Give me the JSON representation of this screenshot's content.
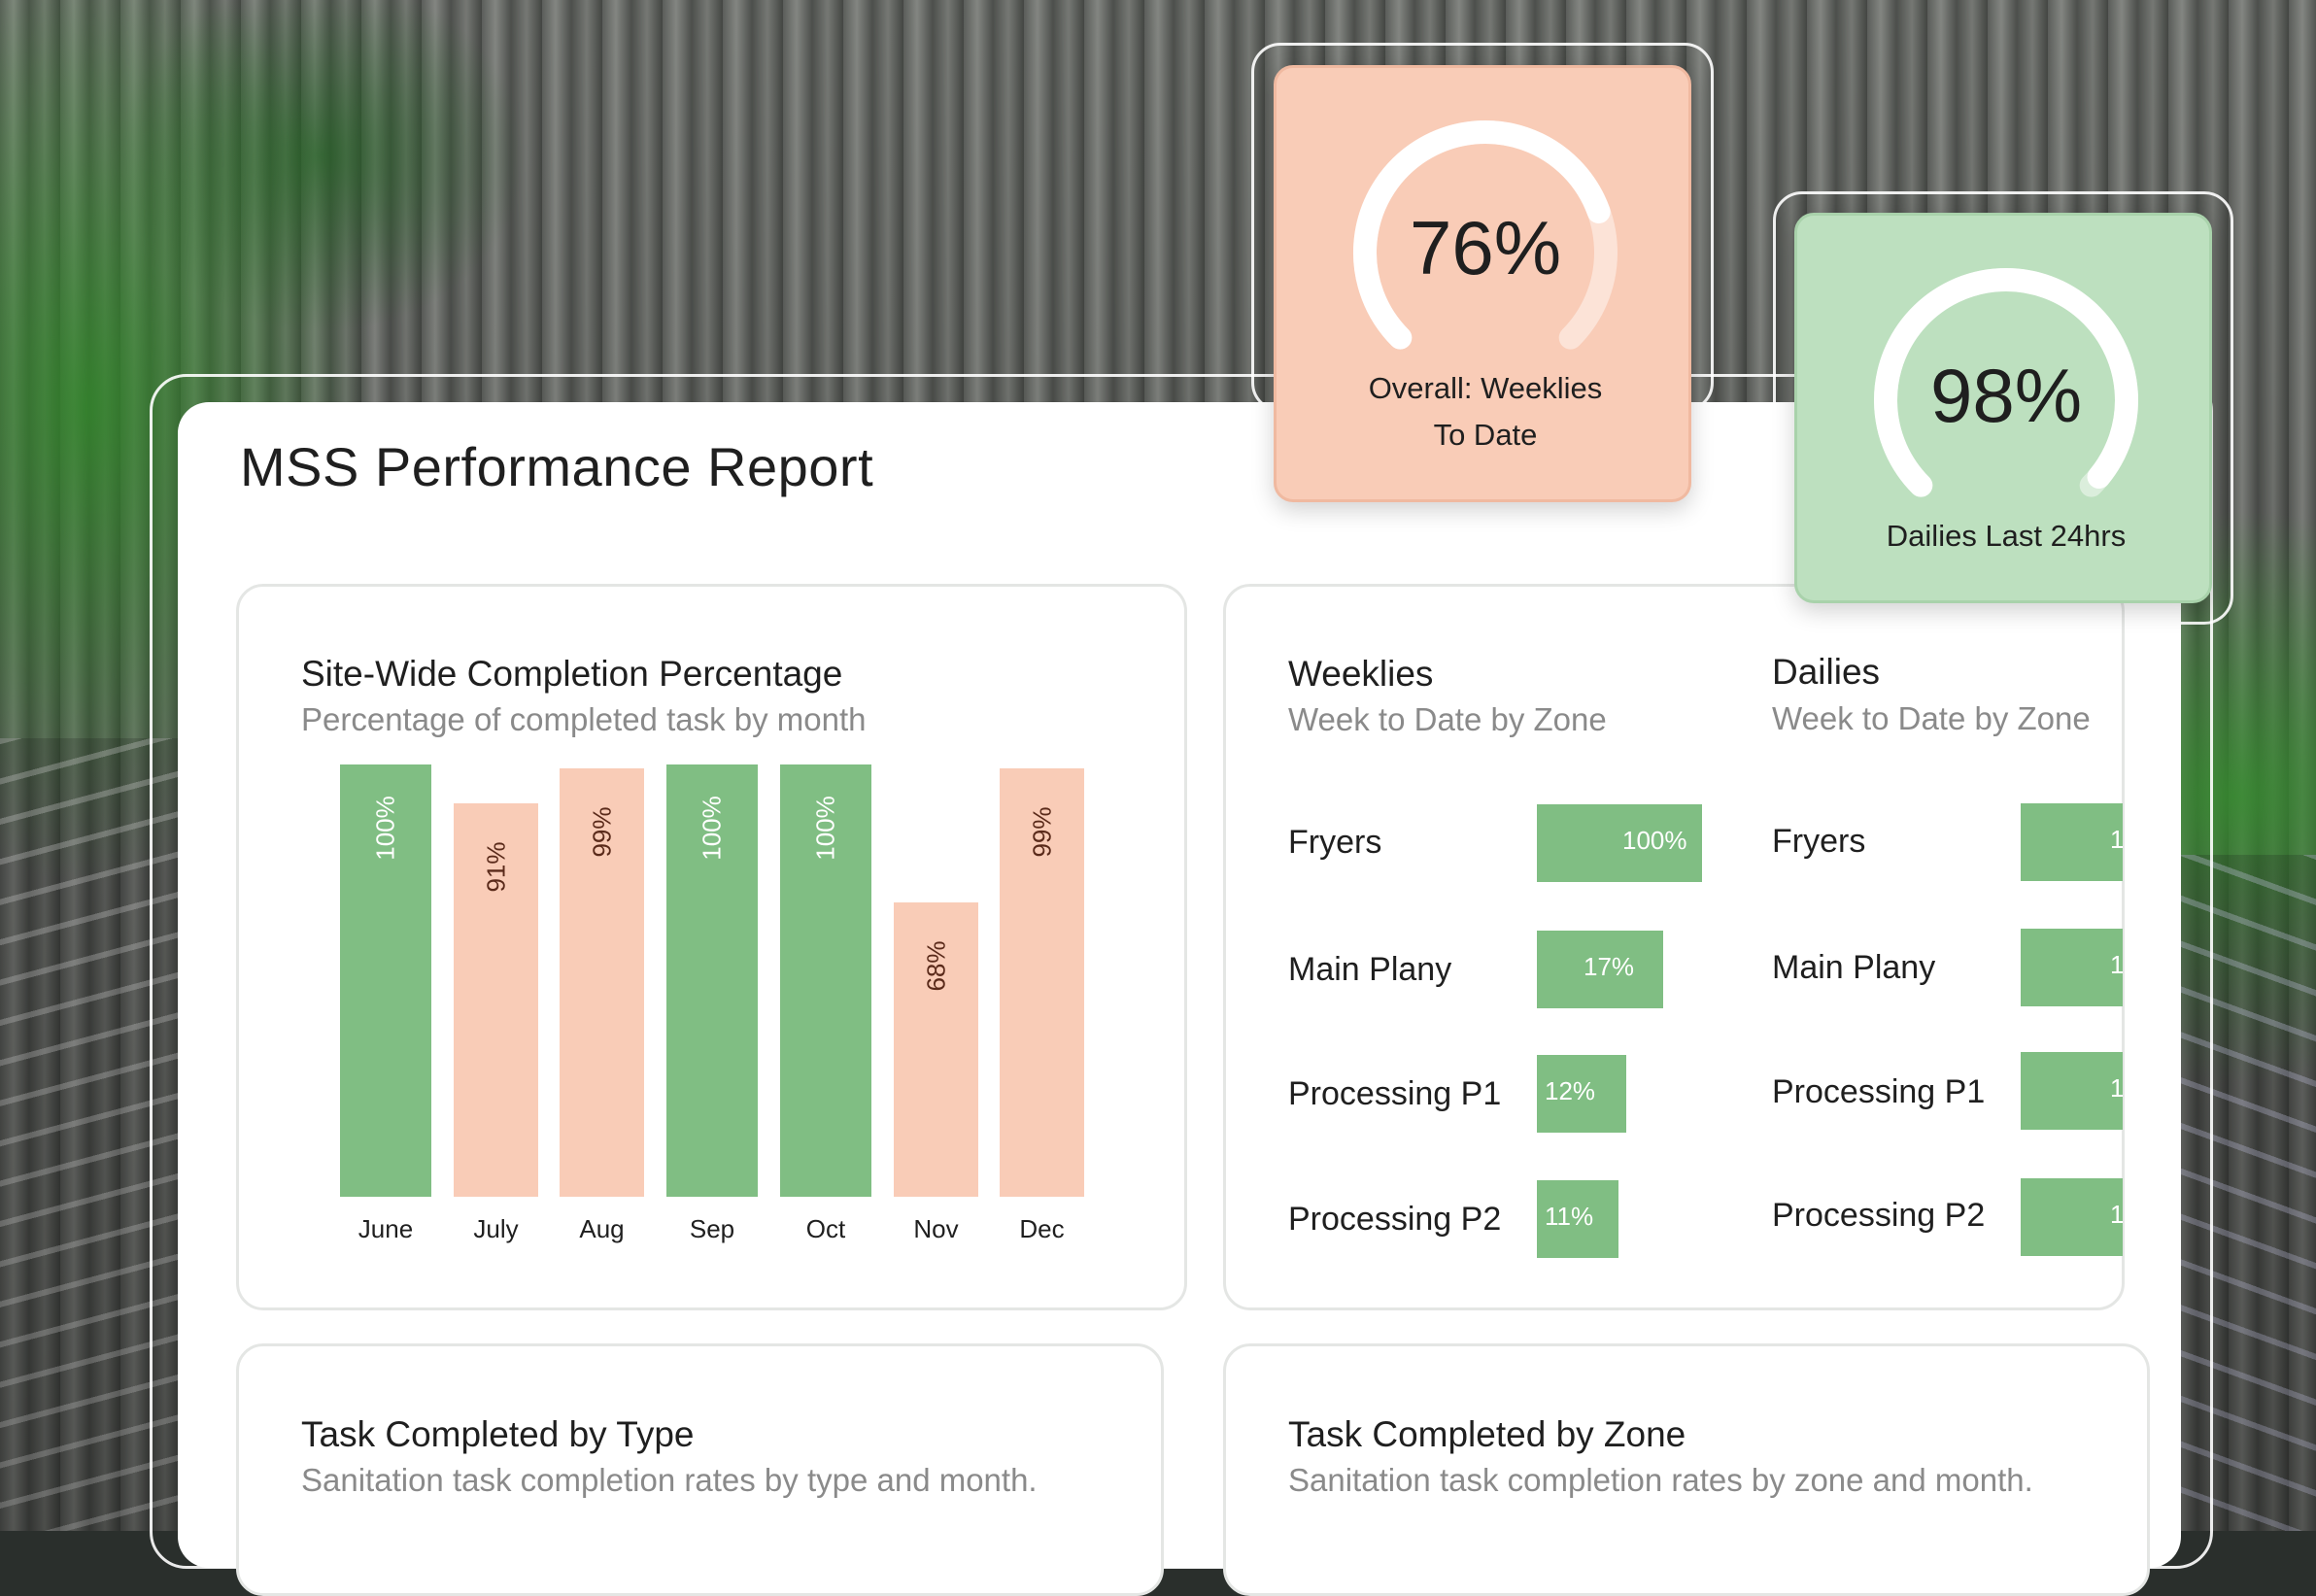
{
  "report": {
    "title": "MSS Performance Report"
  },
  "gauges": [
    {
      "value_text": "76%",
      "value": 76,
      "label_line1": "Overall: Weeklies",
      "label_line2": "To Date",
      "color": "#f9ccb7"
    },
    {
      "value_text": "98%",
      "value": 98,
      "label_line1": "Dailies Last 24hrs",
      "label_line2": "",
      "color": "#bde0bf"
    }
  ],
  "site_panel": {
    "title": "Site-Wide Completion Percentage",
    "subtitle": "Percentage of completed task by month"
  },
  "chart_data": {
    "type": "bar",
    "title": "Site-Wide Completion Percentage",
    "subtitle": "Percentage of completed task by month",
    "categories": [
      "June",
      "July",
      "Aug",
      "Sep",
      "Oct",
      "Nov",
      "Dec"
    ],
    "values": [
      100,
      91,
      99,
      100,
      100,
      68,
      99
    ],
    "value_labels": [
      "100%",
      "91%",
      "99%",
      "100%",
      "100%",
      "68%",
      "99%"
    ],
    "bar_colors": [
      "#80be83",
      "#f9ccb7",
      "#f9ccb7",
      "#80be83",
      "#80be83",
      "#f9ccb7",
      "#f9ccb7"
    ],
    "ylim": [
      0,
      100
    ]
  },
  "weeklies": {
    "title": "Weeklies",
    "subtitle": "Week to Date by Zone",
    "rows": [
      {
        "label": "Fryers",
        "value_text": "100%",
        "value": 100
      },
      {
        "label": "Main Plany",
        "value_text": "17%",
        "value": 17
      },
      {
        "label": "Processing P1",
        "value_text": "12%",
        "value": 12
      },
      {
        "label": "Processing P2",
        "value_text": "11%",
        "value": 11
      }
    ]
  },
  "dailies": {
    "title": "Dailies",
    "subtitle": "Week to Date by Zone",
    "rows": [
      {
        "label": "Fryers",
        "value_text": "1"
      },
      {
        "label": "Main Plany",
        "value_text": "1"
      },
      {
        "label": "Processing P1",
        "value_text": "1"
      },
      {
        "label": "Processing P2",
        "value_text": "1"
      }
    ]
  },
  "type_panel": {
    "title": "Task Completed by Type",
    "subtitle": "Sanitation task completion rates by type and month."
  },
  "zone_panel": {
    "title": "Task Completed by Zone",
    "subtitle": "Sanitation task completion rates by zone and month."
  },
  "colors": {
    "green": "#80be83",
    "peach": "#f9ccb7",
    "text_dark": "#1f1f1f",
    "text_muted": "#8a8a8a"
  }
}
